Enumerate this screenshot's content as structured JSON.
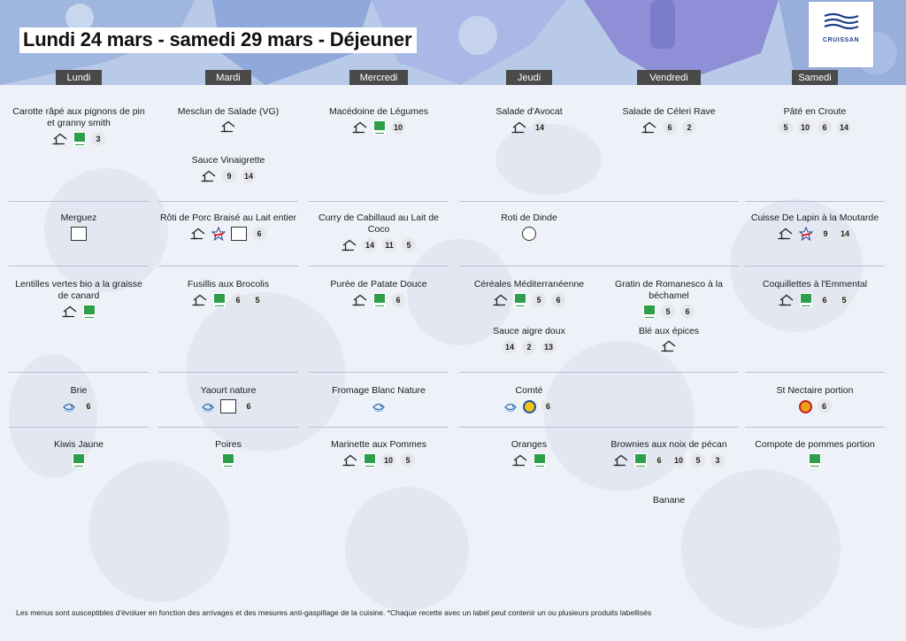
{
  "title": "Lundi 24 mars - samedi 29 mars  - Déjeuner",
  "logo": {
    "name": "CRUISSAN",
    "subtitle": ""
  },
  "days": [
    "Lundi",
    "Mardi",
    "Mercredi",
    "Jeudi",
    "Vendredi",
    "Samedi"
  ],
  "dishes": [
    {
      "day": 0,
      "row": 0,
      "name": "Carotte râpé aux pignons de pin et granny smith",
      "badges": [
        "house",
        "bio",
        "3"
      ]
    },
    {
      "day": 1,
      "row": 0,
      "name": "Mesclun de Salade (VG)",
      "badges": [
        "house"
      ]
    },
    {
      "day": 1,
      "row": 0,
      "slot": 1,
      "name": "Sauce Vinaigrette",
      "badges": [
        "house",
        "9",
        "14"
      ]
    },
    {
      "day": 2,
      "row": 0,
      "name": "Macédoine de Légumes",
      "badges": [
        "house",
        "bio",
        "10"
      ]
    },
    {
      "day": 3,
      "row": 0,
      "name": "Salade d'Avocat",
      "badges": [
        "house",
        "14"
      ]
    },
    {
      "day": 4,
      "row": 0,
      "name": "Salade de Céleri Rave",
      "badges": [
        "house",
        "6",
        "2"
      ]
    },
    {
      "day": 5,
      "row": 0,
      "name": "Pâté en Croute",
      "badges": [
        "5",
        "10",
        "6",
        "14"
      ]
    },
    {
      "day": 0,
      "row": 1,
      "name": "Merguez",
      "badges": [
        "circuit"
      ]
    },
    {
      "day": 1,
      "row": 1,
      "name": "Rôti de Porc Braisé au Lait entier",
      "badges": [
        "house",
        "label-rouge",
        "circuit",
        "6"
      ]
    },
    {
      "day": 2,
      "row": 1,
      "name": "Curry de Cabillaud au Lait de Coco",
      "badges": [
        "house",
        "14",
        "11",
        "5"
      ]
    },
    {
      "day": 3,
      "row": 1,
      "name": "Roti de Dinde",
      "badges": [
        "halal"
      ]
    },
    {
      "day": 5,
      "row": 1,
      "name": "Cuisse De Lapin à la Moutarde",
      "badges": [
        "house",
        "label-rouge",
        "9",
        "14"
      ]
    },
    {
      "day": 0,
      "row": 2,
      "name": "Lentilles vertes bio a la graisse de canard",
      "badges": [
        "house",
        "bio"
      ]
    },
    {
      "day": 1,
      "row": 2,
      "name": "Fusillis aux Brocolis",
      "badges": [
        "house",
        "bio",
        "6",
        "5"
      ]
    },
    {
      "day": 2,
      "row": 2,
      "name": "Purée de Patate Douce",
      "badges": [
        "house",
        "bio",
        "6"
      ]
    },
    {
      "day": 3,
      "row": 2,
      "name": "Céréales Méditerranéenne",
      "badges": [
        "house",
        "bio",
        "5",
        "6"
      ]
    },
    {
      "day": 3,
      "row": 2,
      "slot": 1,
      "name": "Sauce aigre doux",
      "badges": [
        "14",
        "2",
        "13"
      ]
    },
    {
      "day": 4,
      "row": 2,
      "name": "Gratin de Romanesco à la béchamel",
      "badges": [
        "bio",
        "5",
        "6"
      ]
    },
    {
      "day": 4,
      "row": 2,
      "slot": 1,
      "name": "Blé aux épices",
      "badges": [
        "house"
      ]
    },
    {
      "day": 5,
      "row": 2,
      "name": "Coquillettes à l'Emmental",
      "badges": [
        "house",
        "bio",
        "6",
        "5"
      ]
    },
    {
      "day": 0,
      "row": 3,
      "name": "Brie",
      "badges": [
        "peche",
        "6"
      ]
    },
    {
      "day": 1,
      "row": 3,
      "name": "Yaourt nature",
      "badges": [
        "peche",
        "circuit",
        "6"
      ]
    },
    {
      "day": 2,
      "row": 3,
      "name": "Fromage Blanc Nature",
      "badges": [
        "peche"
      ]
    },
    {
      "day": 3,
      "row": 3,
      "name": "Comté",
      "badges": [
        "peche",
        "igp",
        "6"
      ]
    },
    {
      "day": 5,
      "row": 3,
      "name": "St Nectaire portion",
      "badges": [
        "aop",
        "6"
      ]
    },
    {
      "day": 0,
      "row": 4,
      "name": "Kiwis Jaune",
      "badges": [
        "bio"
      ]
    },
    {
      "day": 1,
      "row": 4,
      "name": "Poires",
      "badges": [
        "bio"
      ]
    },
    {
      "day": 2,
      "row": 4,
      "name": "Marinette aux Pommes",
      "badges": [
        "house",
        "bio",
        "10",
        "5"
      ]
    },
    {
      "day": 3,
      "row": 4,
      "name": "Oranges",
      "badges": [
        "house",
        "bio"
      ]
    },
    {
      "day": 4,
      "row": 4,
      "name": "Brownies aux noix de pécan",
      "badges": [
        "house",
        "bio",
        "6",
        "10",
        "5",
        "3"
      ]
    },
    {
      "day": 4,
      "row": 4,
      "slot": 1,
      "name": "Banane",
      "badges": []
    },
    {
      "day": 5,
      "row": 4,
      "name": "Compote de pommes portion",
      "badges": [
        "bio"
      ]
    }
  ],
  "footer": "Les menus sont susceptibles d'évoluer en fonction des arrivages et des mesures anti-gaspillage de la cuisine. *Chaque recette avec un label peut contenir un ou plusieurs produits labellisés",
  "colors": {
    "banner_blue": "#9fb6de",
    "banner_purple": "#8e8fd6",
    "header_bg": "#4a4a4a",
    "bio_green": "#2e9e4a"
  }
}
